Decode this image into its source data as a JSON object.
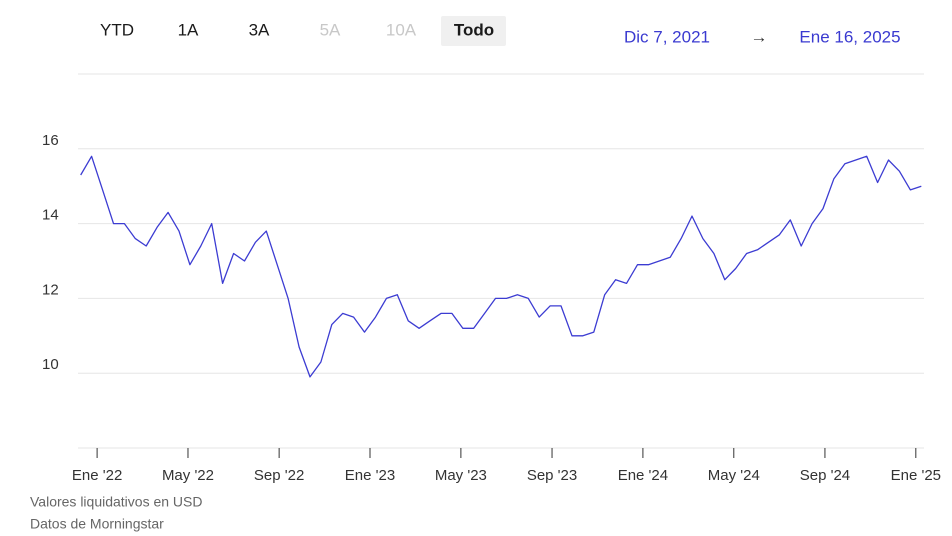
{
  "controls": {
    "ranges": [
      "YTD",
      "1A",
      "3A",
      "5A",
      "10A",
      "Todo"
    ],
    "disabled": [
      false,
      false,
      false,
      true,
      true,
      false
    ],
    "selected": 5,
    "date_from": "Dic 7, 2021",
    "arrow": "→",
    "date_to": "Ene 16, 2025"
  },
  "chart_data": {
    "type": "line",
    "x": [
      2021.94,
      2021.98,
      2022.02,
      2022.06,
      2022.1,
      2022.14,
      2022.18,
      2022.22,
      2022.26,
      2022.3,
      2022.34,
      2022.38,
      2022.42,
      2022.46,
      2022.5,
      2022.54,
      2022.58,
      2022.62,
      2022.66,
      2022.7,
      2022.74,
      2022.78,
      2022.82,
      2022.86,
      2022.9,
      2022.94,
      2022.98,
      2023.02,
      2023.06,
      2023.1,
      2023.14,
      2023.18,
      2023.22,
      2023.26,
      2023.3,
      2023.34,
      2023.38,
      2023.42,
      2023.46,
      2023.5,
      2023.54,
      2023.58,
      2023.62,
      2023.66,
      2023.7,
      2023.74,
      2023.78,
      2023.82,
      2023.86,
      2023.9,
      2023.94,
      2023.98,
      2024.02,
      2024.06,
      2024.1,
      2024.14,
      2024.18,
      2024.22,
      2024.26,
      2024.3,
      2024.34,
      2024.38,
      2024.42,
      2024.46,
      2024.5,
      2024.54,
      2024.58,
      2024.62,
      2024.66,
      2024.7,
      2024.74,
      2024.78,
      2024.82,
      2024.86,
      2024.9,
      2024.94,
      2024.98,
      2025.02
    ],
    "series": [
      {
        "color": "#3c3cd2",
        "values": [
          15.3,
          15.8,
          14.9,
          14.0,
          14.0,
          13.6,
          13.4,
          13.9,
          14.3,
          13.8,
          12.9,
          13.4,
          14.0,
          12.4,
          13.2,
          13.0,
          13.5,
          13.8,
          12.9,
          12.0,
          10.7,
          9.9,
          10.3,
          11.3,
          11.6,
          11.5,
          11.1,
          11.5,
          12.0,
          12.1,
          11.4,
          11.2,
          11.4,
          11.6,
          11.6,
          11.2,
          11.2,
          11.6,
          12.0,
          12.0,
          12.1,
          12.0,
          11.5,
          11.8,
          11.8,
          11.0,
          11.0,
          11.1,
          12.1,
          12.5,
          12.4,
          12.9,
          12.9,
          13.0,
          13.1,
          13.6,
          14.2,
          13.6,
          13.2,
          12.5,
          12.8,
          13.2,
          13.3,
          13.5,
          13.7,
          14.1,
          13.4,
          14.0,
          14.4,
          15.2,
          15.6,
          15.7,
          15.8,
          15.1,
          15.7,
          15.4,
          14.9,
          15.0
        ]
      }
    ],
    "xlim": [
      2021.93,
      2025.03
    ],
    "xticks": [
      {
        "value": 2022,
        "label": "Ene '22"
      },
      {
        "value": 2022.333,
        "label": "May '22"
      },
      {
        "value": 2022.667,
        "label": "Sep '22"
      },
      {
        "value": 2023,
        "label": "Ene '23"
      },
      {
        "value": 2023.333,
        "label": "May '23"
      },
      {
        "value": 2023.667,
        "label": "Sep '23"
      },
      {
        "value": 2024,
        "label": "Ene '24"
      },
      {
        "value": 2024.333,
        "label": "May '24"
      },
      {
        "value": 2024.667,
        "label": "Sep '24"
      },
      {
        "value": 2025,
        "label": "Ene '25"
      }
    ],
    "ylim": [
      8,
      18
    ],
    "yticks": [
      10,
      12,
      14,
      16
    ],
    "grid": true
  },
  "footer": [
    "Valores liquidativos en USD",
    "Datos de Morningstar"
  ]
}
